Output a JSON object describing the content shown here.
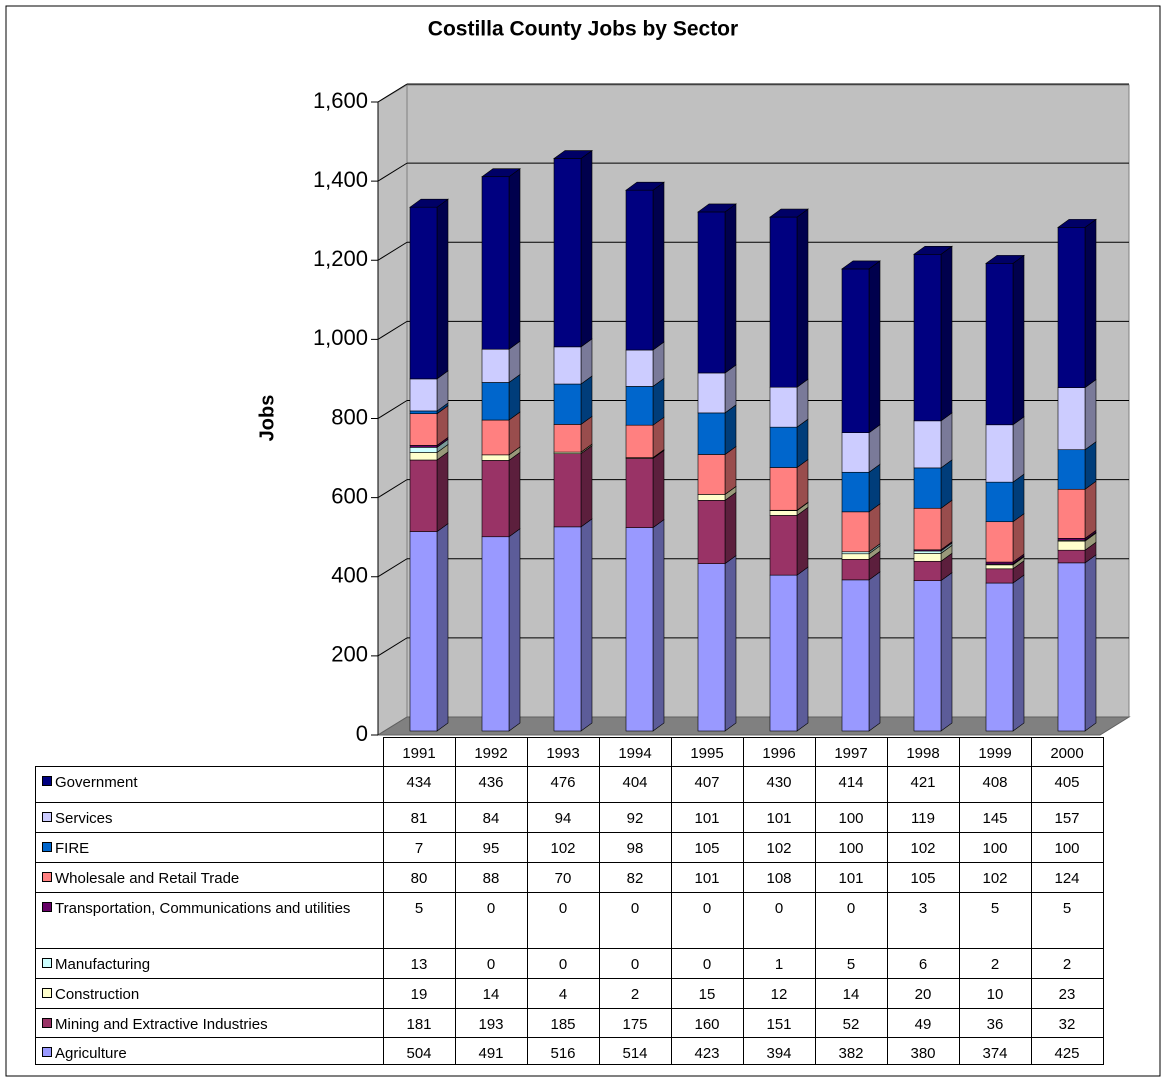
{
  "chart_data": {
    "type": "bar",
    "stacked": true,
    "title": "Costilla County Jobs by Sector",
    "y_label": "Jobs",
    "categories": [
      "1991",
      "1992",
      "1993",
      "1994",
      "1995",
      "1996",
      "1997",
      "1998",
      "1999",
      "2000"
    ],
    "ylim": [
      0,
      1600
    ],
    "yticks": [
      0,
      200,
      400,
      600,
      800,
      {
        "value": 1000,
        "label": "1,000"
      },
      {
        "value": 1200,
        "label": "1,200"
      },
      {
        "value": 1400,
        "label": "1,400"
      },
      {
        "value": 1600,
        "label": "1,600"
      }
    ],
    "grid": true,
    "series": [
      {
        "name": "Agriculture",
        "color": "#9999ff",
        "values": [
          504,
          491,
          516,
          514,
          423,
          394,
          382,
          380,
          374,
          425
        ]
      },
      {
        "name": "Mining and Extractive Industries",
        "color": "#993366",
        "values": [
          181,
          193,
          185,
          175,
          160,
          151,
          52,
          49,
          36,
          32
        ]
      },
      {
        "name": "Construction",
        "color": "#ffffcc",
        "values": [
          19,
          14,
          4,
          2,
          15,
          12,
          14,
          20,
          10,
          23
        ]
      },
      {
        "name": "Manufacturing",
        "color": "#ccffff",
        "values": [
          13,
          0,
          0,
          0,
          0,
          1,
          5,
          6,
          2,
          2
        ]
      },
      {
        "name": "Transportation, Communications and utilities",
        "color": "#660066",
        "values": [
          5,
          0,
          0,
          0,
          0,
          0,
          0,
          3,
          5,
          5
        ]
      },
      {
        "name": "Wholesale and Retail Trade",
        "color": "#ff8080",
        "values": [
          80,
          88,
          70,
          82,
          101,
          108,
          101,
          105,
          102,
          124
        ]
      },
      {
        "name": "FIRE",
        "color": "#0066cc",
        "values": [
          7,
          95,
          102,
          98,
          105,
          102,
          100,
          102,
          100,
          100
        ]
      },
      {
        "name": "Services",
        "color": "#ccccff",
        "values": [
          81,
          84,
          94,
          92,
          101,
          101,
          100,
          119,
          145,
          157
        ]
      },
      {
        "name": "Government",
        "color": "#000080",
        "values": [
          434,
          436,
          476,
          404,
          407,
          430,
          414,
          421,
          408,
          405
        ]
      }
    ]
  }
}
